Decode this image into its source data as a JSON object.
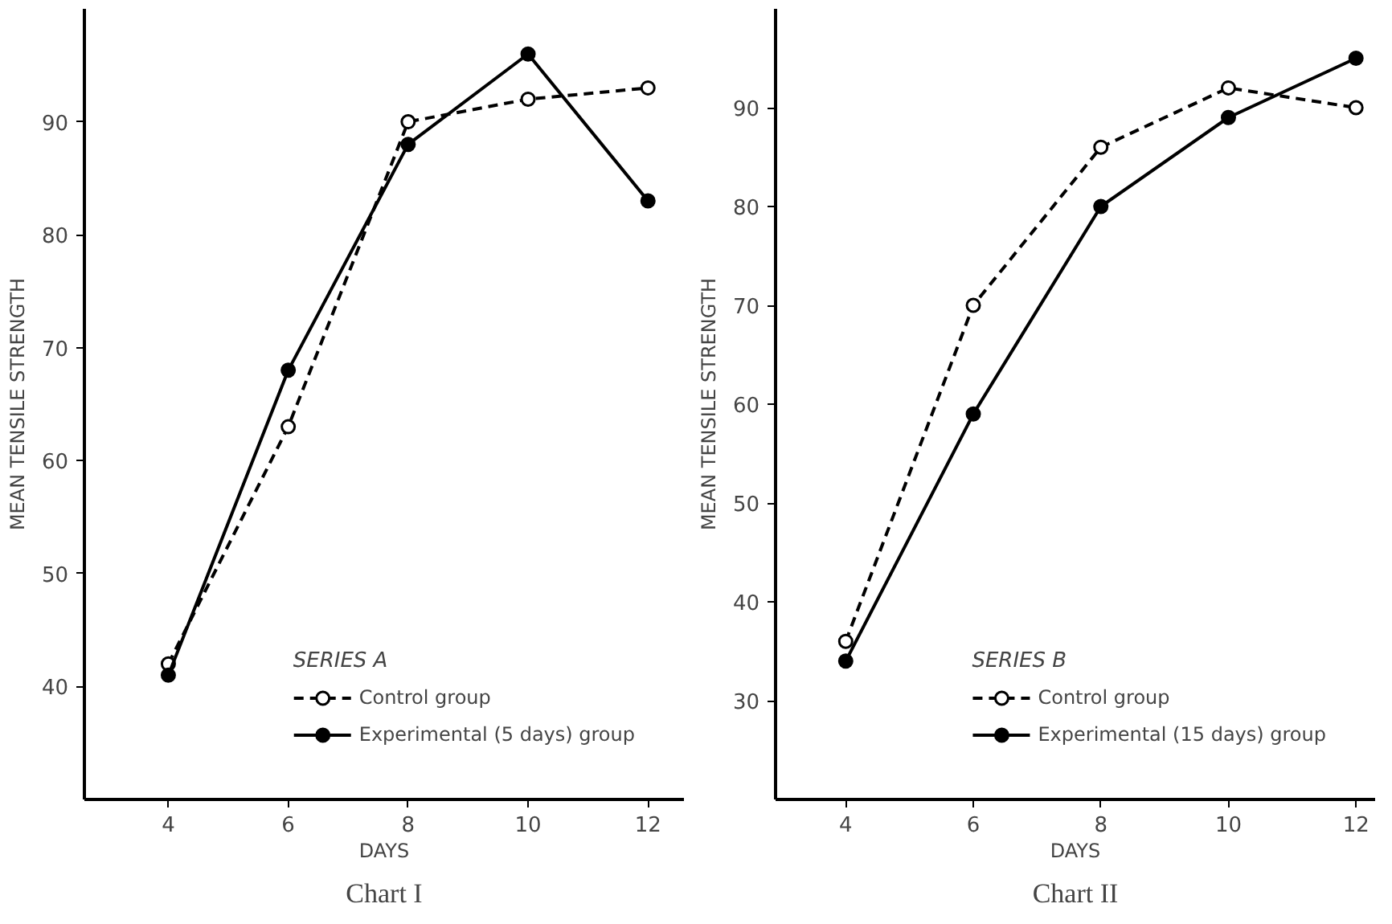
{
  "chart_data": [
    {
      "type": "line",
      "title": "Chart I",
      "xlabel": "DAYS",
      "ylabel": "MEAN TENSILE STRENGTH",
      "legend_title": "SERIES A",
      "x": [
        4,
        6,
        8,
        10,
        12
      ],
      "xlim": [
        2.6,
        12.6
      ],
      "xticks": [
        4,
        6,
        8,
        10,
        12
      ],
      "ylim": [
        30,
        100
      ],
      "yticks": [
        40,
        50,
        60,
        70,
        80,
        90
      ],
      "grid": false,
      "legend": "bottom right",
      "marker": "circle",
      "series": [
        {
          "name": "Control group",
          "color": "#000000",
          "line_style": "dashed",
          "values": [
            42,
            63,
            90,
            92,
            93
          ]
        },
        {
          "name": "Experimental (5 days) group",
          "color": "#000000",
          "line_style": "solid",
          "values": [
            41,
            68,
            88,
            96,
            83
          ]
        }
      ]
    },
    {
      "type": "line",
      "title": "Chart II",
      "xlabel": "DAYS",
      "ylabel": "MEAN TENSILE STRENGTH",
      "legend_title": "SERIES B",
      "x": [
        4,
        6,
        8,
        10,
        12
      ],
      "xlim": [
        2.9,
        12.3
      ],
      "xticks": [
        4,
        6,
        8,
        10,
        12
      ],
      "ylim": [
        20,
        100
      ],
      "yticks": [
        30,
        40,
        50,
        60,
        70,
        80,
        90
      ],
      "grid": false,
      "legend": "bottom right",
      "marker": "circle",
      "series": [
        {
          "name": "Control group",
          "color": "#000000",
          "line_style": "dashed",
          "values": [
            36,
            70,
            86,
            92,
            90
          ]
        },
        {
          "name": "Experimental (15 days) group",
          "color": "#000000",
          "line_style": "solid",
          "values": [
            34,
            59,
            80,
            89,
            95
          ]
        }
      ]
    }
  ]
}
